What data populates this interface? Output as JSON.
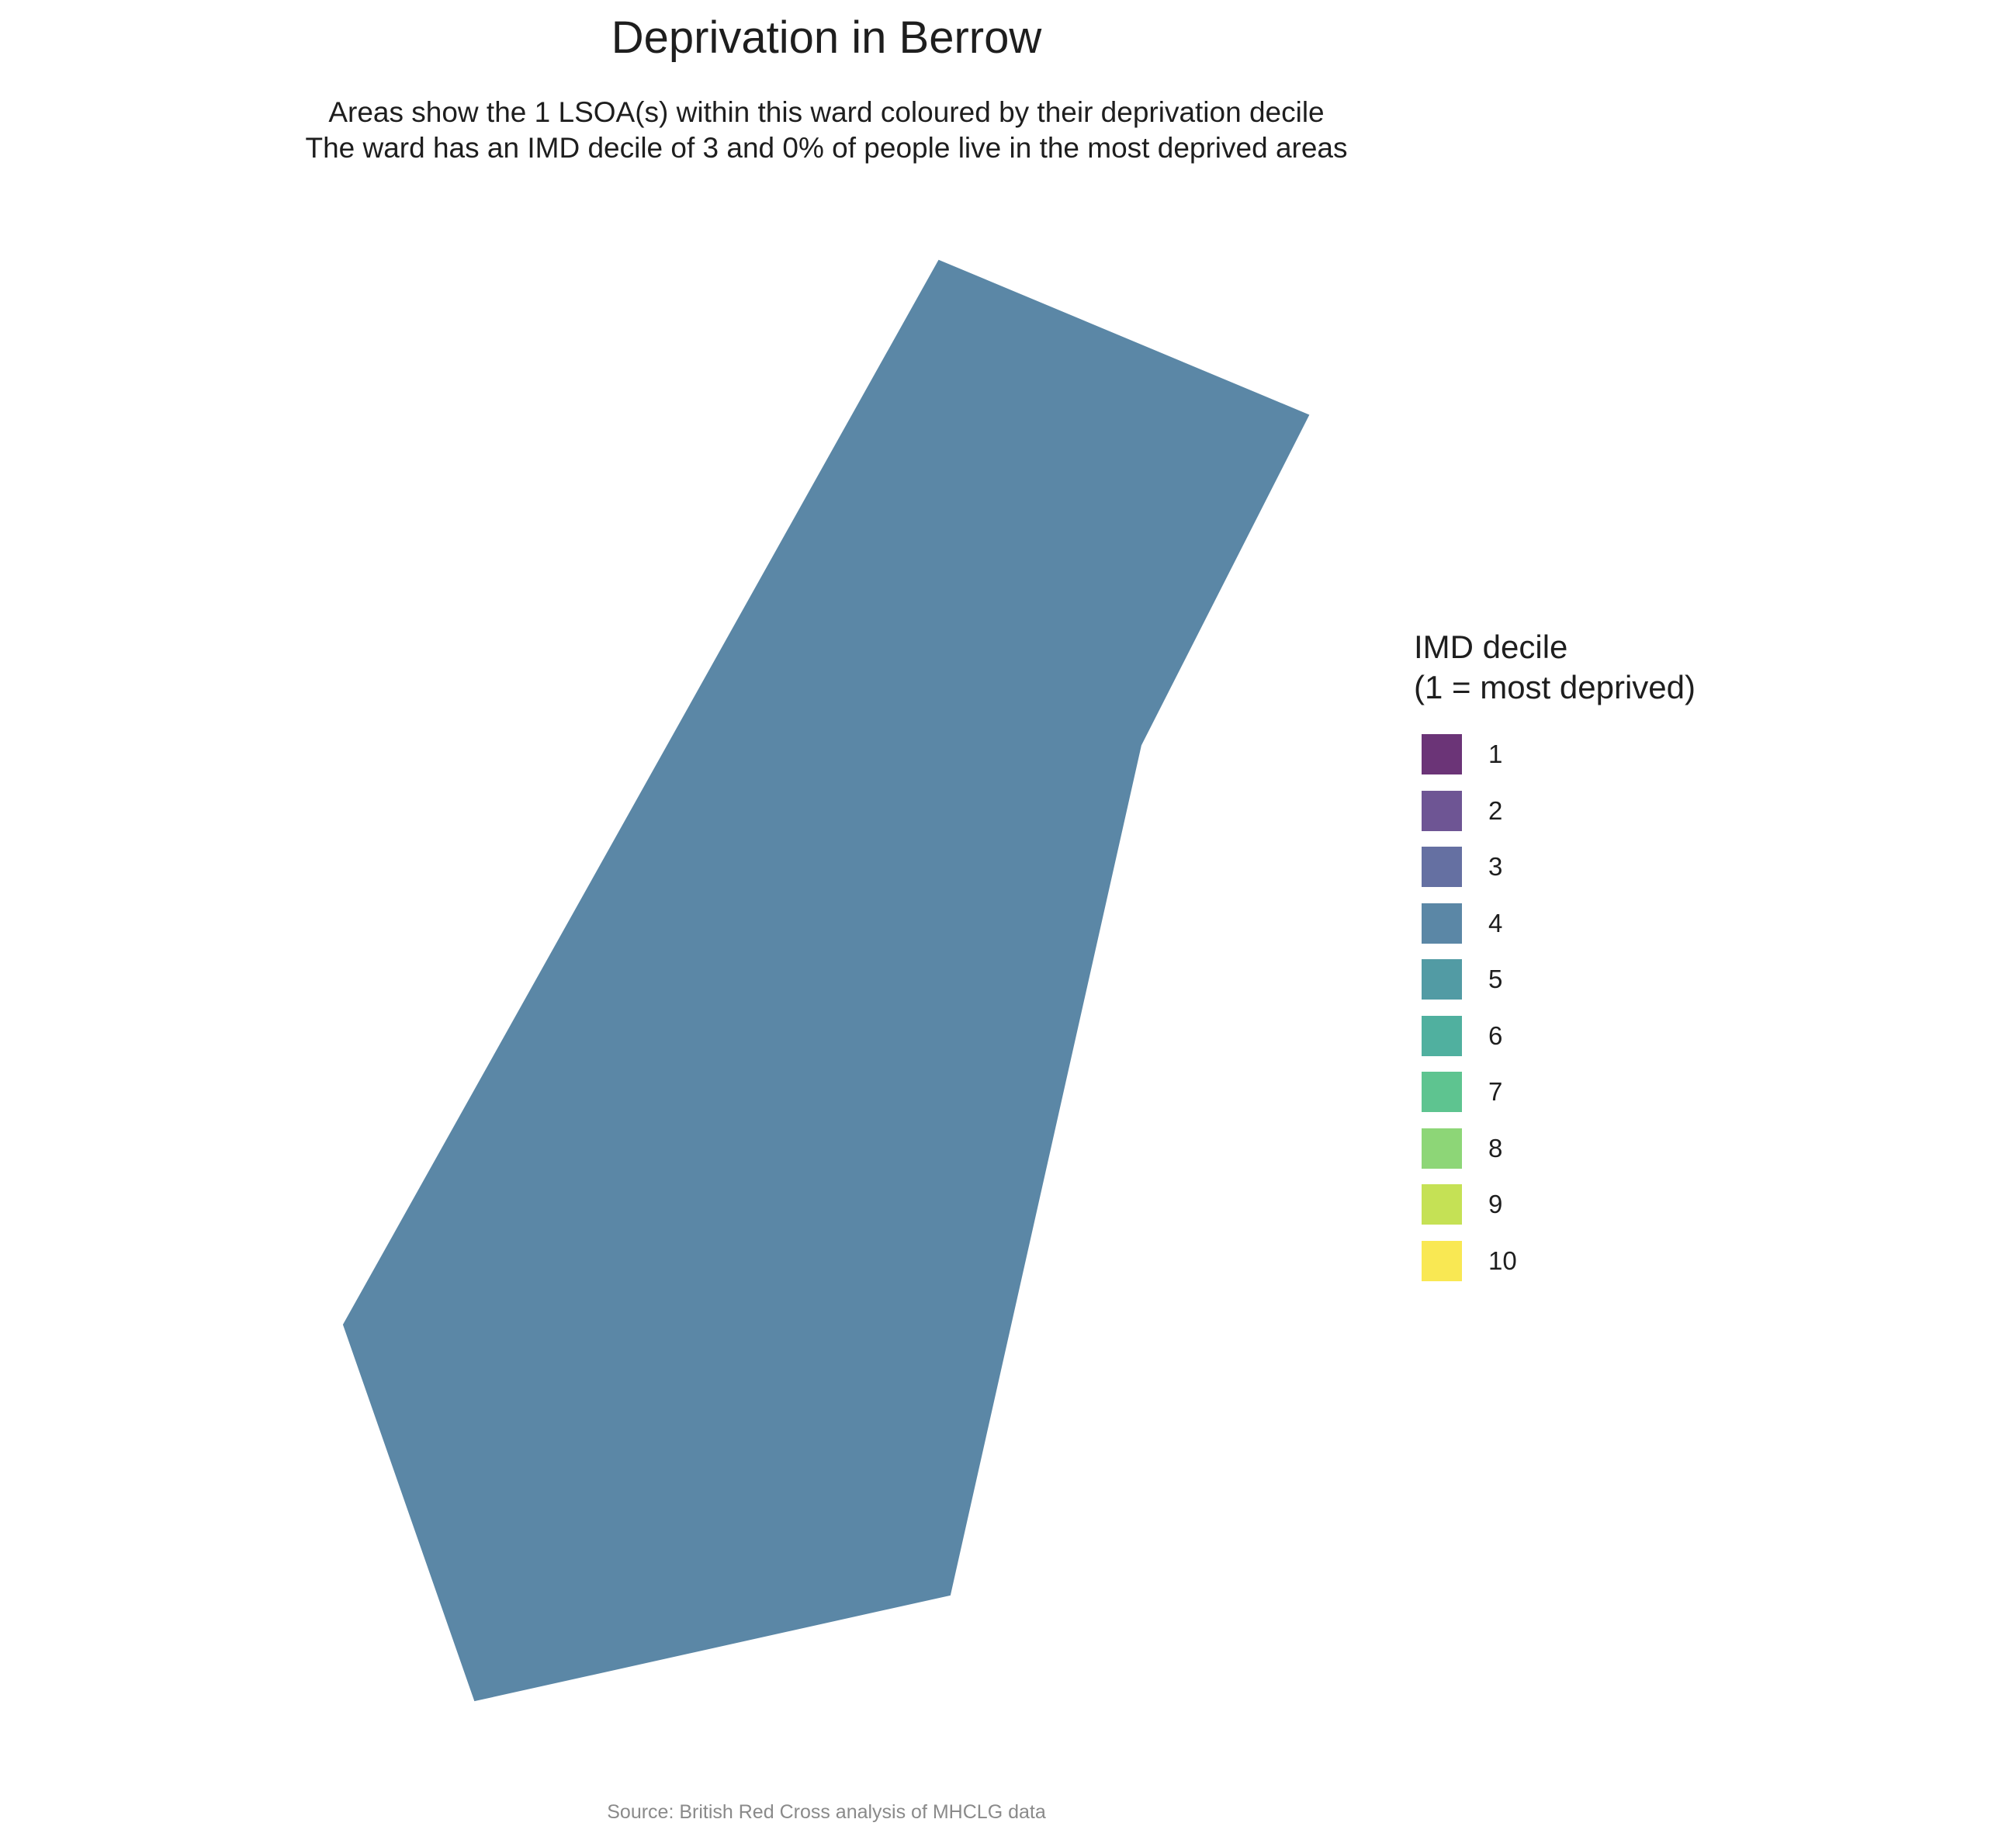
{
  "title": "Deprivation in Berrow",
  "subtitle": [
    "Areas show the 1 LSOA(s) within this ward coloured by their deprivation decile",
    "The ward has an IMD decile of 3 and 0% of people live in the most deprived areas"
  ],
  "caption": "Source: British Red Cross analysis of MHCLG data",
  "map": {
    "areas": [
      {
        "imd_decile": 4,
        "fill": "#5b87a6"
      }
    ]
  },
  "legend": {
    "title_lines": [
      "IMD decile",
      "(1 = most deprived)"
    ],
    "items": [
      {
        "label": "1",
        "color": "#6b3477"
      },
      {
        "label": "2",
        "color": "#6e5594"
      },
      {
        "label": "3",
        "color": "#6570a2"
      },
      {
        "label": "4",
        "color": "#5b87a6"
      },
      {
        "label": "5",
        "color": "#529ba4"
      },
      {
        "label": "6",
        "color": "#50b09f"
      },
      {
        "label": "7",
        "color": "#5ec490"
      },
      {
        "label": "8",
        "color": "#8dd677"
      },
      {
        "label": "9",
        "color": "#c5e155"
      },
      {
        "label": "10",
        "color": "#f9e853"
      }
    ]
  }
}
